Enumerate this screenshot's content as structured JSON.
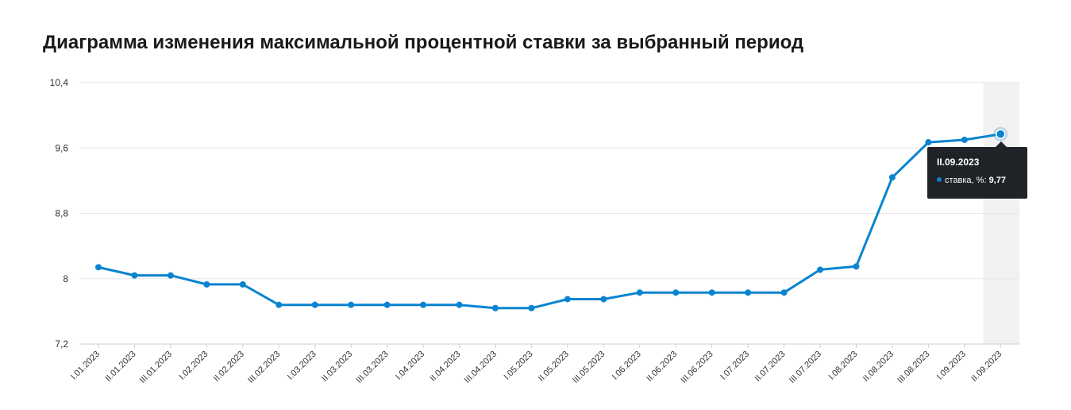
{
  "page": {
    "title": "Диаграмма изменения максимальной процентной ставки за выбранный период"
  },
  "colors": {
    "line": "#0a84d0",
    "grid": "#e6e6e6",
    "highlight_band": "#f2f2f2",
    "tooltip_bg": "#1f2226"
  },
  "tooltip": {
    "date": "II.09.2023",
    "label": "ставка, %:",
    "value": "9,77"
  },
  "chart_data": {
    "type": "line",
    "title": "Диаграмма изменения максимальной процентной ставки за выбранный период",
    "xlabel": "",
    "ylabel": "",
    "ylim": [
      7.2,
      10.4
    ],
    "yticks": [
      7.2,
      8,
      8.8,
      9.6,
      10.4
    ],
    "ytick_labels": [
      "7,2",
      "8",
      "8,8",
      "9,6",
      "10,4"
    ],
    "grid": true,
    "legend": "none",
    "highlighted_index": 25,
    "categories": [
      "I.01.2023",
      "II.01.2023",
      "III.01.2023",
      "I.02.2023",
      "II.02.2023",
      "III.02.2023",
      "I.03.2023",
      "II.03.2023",
      "III.03.2023",
      "I.04.2023",
      "II.04.2023",
      "III.04.2023",
      "I.05.2023",
      "II.05.2023",
      "III.05.2023",
      "I.06.2023",
      "II.06.2023",
      "III.06.2023",
      "I.07.2023",
      "II.07.2023",
      "III.07.2023",
      "I.08.2023",
      "II.08.2023",
      "III.08.2023",
      "I.09.2023",
      "II.09.2023"
    ],
    "series": [
      {
        "name": "ставка, %",
        "values": [
          8.14,
          8.04,
          8.04,
          7.93,
          7.93,
          7.68,
          7.68,
          7.68,
          7.68,
          7.68,
          7.68,
          7.64,
          7.64,
          7.75,
          7.75,
          7.83,
          7.83,
          7.83,
          7.83,
          7.83,
          8.11,
          8.15,
          9.24,
          9.67,
          9.7,
          9.77
        ]
      }
    ]
  }
}
